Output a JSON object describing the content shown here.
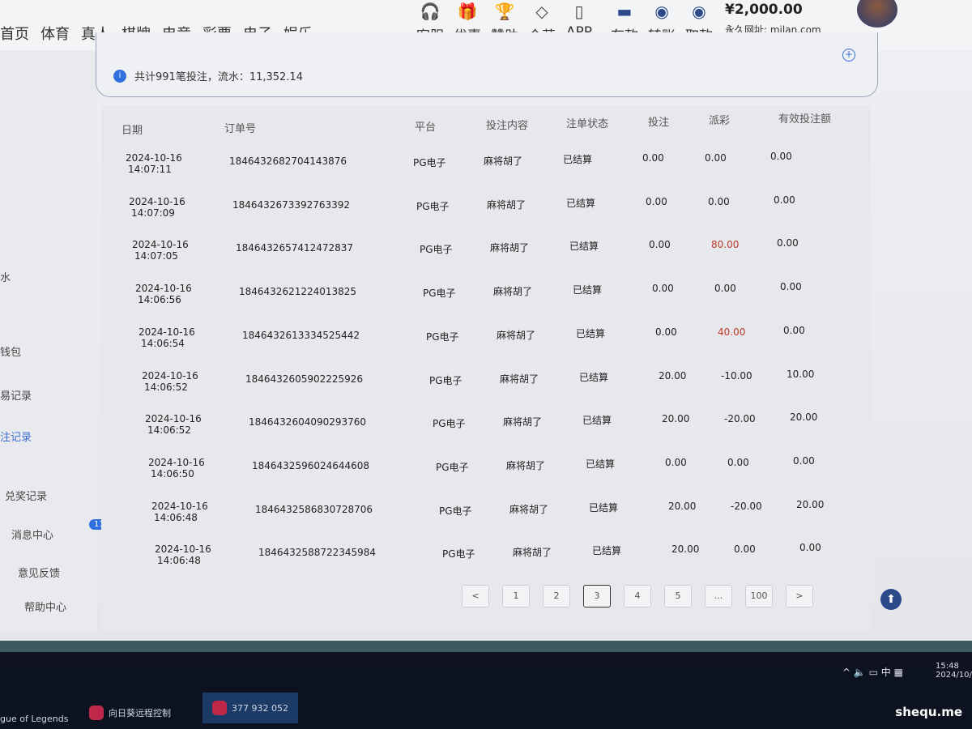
{
  "nav": {
    "items": [
      "首页",
      "体育",
      "真人",
      "棋牌",
      "电竞",
      "彩票",
      "电子",
      "娱乐"
    ],
    "icons": [
      {
        "label": "客服",
        "icon": "headset-icon"
      },
      {
        "label": "优惠",
        "icon": "gift-icon"
      },
      {
        "label": "赞助",
        "icon": "trophy-icon"
      },
      {
        "label": "合营",
        "icon": "handshake-icon"
      },
      {
        "label": "APP",
        "icon": "phone-icon"
      },
      {
        "label": "存款",
        "icon": "deposit-icon"
      },
      {
        "label": "转账",
        "icon": "transfer-icon"
      },
      {
        "label": "取款",
        "icon": "withdraw-icon"
      }
    ],
    "balance": "¥2,000.00",
    "url": "永久网址: milan.com"
  },
  "sidebar": {
    "items": [
      "水",
      "钱包",
      "易记录",
      "注记录",
      "兑奖记录",
      "消息中心",
      "意见反馈",
      "帮助中心"
    ],
    "active": "注记录",
    "message_badge": "11"
  },
  "summary": "共计991笔投注，流水：11,352.14",
  "table": {
    "headers": [
      "日期",
      "订单号",
      "平台",
      "投注内容",
      "注单状态",
      "投注",
      "派彩",
      "有效投注额"
    ],
    "rows": [
      {
        "date": "2024-10-16",
        "time": "14:07:11",
        "order": "1846432682704143876",
        "platform": "PG电子",
        "content": "麻将胡了",
        "status": "已结算",
        "bet": "0.00",
        "payout": "0.00",
        "valid": "0.00"
      },
      {
        "date": "2024-10-16",
        "time": "14:07:09",
        "order": "1846432673392763392",
        "platform": "PG电子",
        "content": "麻将胡了",
        "status": "已结算",
        "bet": "0.00",
        "payout": "0.00",
        "valid": "0.00"
      },
      {
        "date": "2024-10-16",
        "time": "14:07:05",
        "order": "1846432657412472837",
        "platform": "PG电子",
        "content": "麻将胡了",
        "status": "已结算",
        "bet": "0.00",
        "payout": "80.00",
        "valid": "0.00"
      },
      {
        "date": "2024-10-16",
        "time": "14:06:56",
        "order": "1846432621224013825",
        "platform": "PG电子",
        "content": "麻将胡了",
        "status": "已结算",
        "bet": "0.00",
        "payout": "0.00",
        "valid": "0.00"
      },
      {
        "date": "2024-10-16",
        "time": "14:06:54",
        "order": "1846432613334525442",
        "platform": "PG电子",
        "content": "麻将胡了",
        "status": "已结算",
        "bet": "0.00",
        "payout": "40.00",
        "valid": "0.00"
      },
      {
        "date": "2024-10-16",
        "time": "14:06:52",
        "order": "1846432605902225926",
        "platform": "PG电子",
        "content": "麻将胡了",
        "status": "已结算",
        "bet": "20.00",
        "payout": "-10.00",
        "valid": "10.00"
      },
      {
        "date": "2024-10-16",
        "time": "14:06:52",
        "order": "1846432604090293760",
        "platform": "PG电子",
        "content": "麻将胡了",
        "status": "已结算",
        "bet": "20.00",
        "payout": "-20.00",
        "valid": "20.00"
      },
      {
        "date": "2024-10-16",
        "time": "14:06:50",
        "order": "1846432596024644608",
        "platform": "PG电子",
        "content": "麻将胡了",
        "status": "已结算",
        "bet": "0.00",
        "payout": "0.00",
        "valid": "0.00"
      },
      {
        "date": "2024-10-16",
        "time": "14:06:48",
        "order": "1846432586830728706",
        "platform": "PG电子",
        "content": "麻将胡了",
        "status": "已结算",
        "bet": "20.00",
        "payout": "-20.00",
        "valid": "20.00"
      },
      {
        "date": "2024-10-16",
        "time": "14:06:48",
        "order": "1846432588722345984",
        "platform": "PG电子",
        "content": "麻将胡了",
        "status": "已结算",
        "bet": "20.00",
        "payout": "0.00",
        "valid": "0.00"
      }
    ]
  },
  "pagination": {
    "prev": "<",
    "pages": [
      "1",
      "2",
      "3",
      "4",
      "5",
      "...",
      "100"
    ],
    "current": "3",
    "next": ">",
    "tooltip": "3"
  },
  "taskbar": {
    "items": [
      "gue of Legends",
      "向日葵远程控制",
      "377 932 052"
    ],
    "time": "15:48",
    "date": "2024/10/",
    "tray_ime": "中"
  },
  "watermark": "shequ.me",
  "colors": {
    "accent": "#2f6fde",
    "positive_payout": "#c0392b"
  }
}
